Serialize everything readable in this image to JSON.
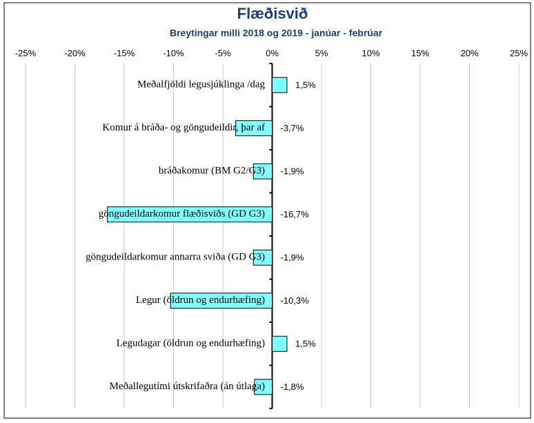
{
  "chart_data": {
    "type": "hbar",
    "title": "Flæðisvið",
    "subtitle": "Breytingar milli 2018 og 2019 - janúar - febrúar",
    "categories": [
      "Meðalfjöldi legusjúklinga /dag",
      "Komur á bráða- og göngudeildir, þar af",
      "bráðakomur (BM G2/G3)",
      "göngudeildarkomur flæðisviðs (GD G3)",
      "göngudeildarkomur annarra sviða (GD G3)",
      "Legur (öldrun og endurhæfing)",
      "Legudagar (öldrun og endurhæfing)",
      "Meðallegutími útskrifaðra (án útlaga)"
    ],
    "values": [
      1.5,
      -3.7,
      -1.9,
      -16.7,
      -1.9,
      -10.3,
      1.5,
      -1.8
    ],
    "value_labels": [
      "1,5%",
      "-3,7%",
      "-1,9%",
      "-16,7%",
      "-1,9%",
      "-10,3%",
      "1,5%",
      "-1,8%"
    ],
    "color": "#80ffff",
    "xlim": [
      -25,
      25
    ],
    "xticks": [
      {
        "value": -25,
        "label": "-25%"
      },
      {
        "value": -20,
        "label": "-20%"
      },
      {
        "value": -15,
        "label": "-15%"
      },
      {
        "value": -10,
        "label": "-10%"
      },
      {
        "value": -5,
        "label": "-5%"
      },
      {
        "value": 0,
        "label": "0%"
      },
      {
        "value": 5,
        "label": "5%"
      },
      {
        "value": 10,
        "label": "10%"
      },
      {
        "value": 15,
        "label": "15%"
      },
      {
        "value": 20,
        "label": "20%"
      },
      {
        "value": 25,
        "label": "25%"
      }
    ],
    "grid": true
  }
}
